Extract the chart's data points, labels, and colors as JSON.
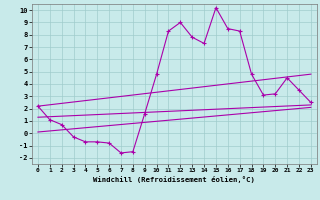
{
  "xlabel": "Windchill (Refroidissement éolien,°C)",
  "xlim": [
    -0.5,
    23.5
  ],
  "ylim": [
    -2.5,
    10.5
  ],
  "yticks": [
    -2,
    -1,
    0,
    1,
    2,
    3,
    4,
    5,
    6,
    7,
    8,
    9,
    10
  ],
  "xticks": [
    0,
    1,
    2,
    3,
    4,
    5,
    6,
    7,
    8,
    9,
    10,
    11,
    12,
    13,
    14,
    15,
    16,
    17,
    18,
    19,
    20,
    21,
    22,
    23
  ],
  "bg_color": "#c8eaea",
  "grid_color": "#a0cccc",
  "line_color": "#aa00aa",
  "main_y": [
    2.2,
    1.1,
    0.7,
    -0.3,
    -0.7,
    -0.7,
    -0.8,
    -1.6,
    -1.5,
    1.6,
    4.8,
    8.3,
    9.0,
    7.8,
    7.3,
    10.2,
    8.5,
    8.3,
    4.8,
    3.1,
    3.2,
    4.5,
    3.5,
    2.5
  ],
  "trend1_start": 2.2,
  "trend1_end": 4.8,
  "trend2_start": 1.3,
  "trend2_end": 2.3,
  "trend3_start": 0.1,
  "trend3_end": 2.1
}
